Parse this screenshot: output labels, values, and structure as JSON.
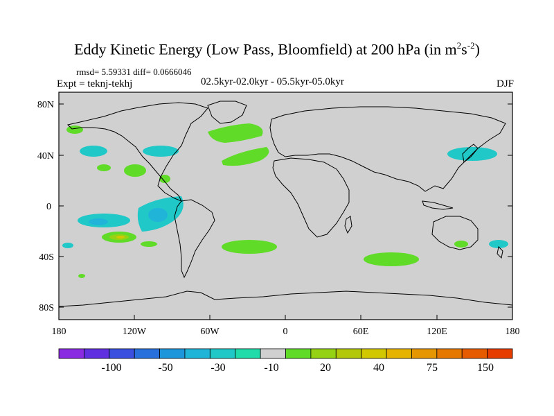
{
  "title": {
    "main": "Eddy Kinetic Energy (Low Pass, Bloomfield) at 200 hPa (in m",
    "sup1": "2",
    "mid": "s",
    "sup2": "-2",
    "end": ")"
  },
  "stats": "rmsd= 5.59331 diff= 0.0666046",
  "expt": "Expt = teknj-tekhj",
  "period": "02.5kyr-02.0kyr - 05.5kyr-05.0kyr",
  "season": "DJF",
  "axes": {
    "lat_ticks": [
      "80N",
      "40N",
      "0",
      "40S",
      "80S"
    ],
    "lon_ticks": [
      "180",
      "120W",
      "60W",
      "0",
      "60E",
      "120E",
      "180"
    ]
  },
  "colorbar": {
    "colors": [
      "#8a2be2",
      "#6030e0",
      "#3c50e0",
      "#2870dc",
      "#1e96dc",
      "#20b4d8",
      "#20c8c8",
      "#20dcaa",
      "#d0d0d0",
      "#60dc28",
      "#96d214",
      "#b4c80a",
      "#d2c800",
      "#e6b400",
      "#e69600",
      "#e67800",
      "#e65a00",
      "#e63c00"
    ],
    "labels": [
      "-100",
      "-50",
      "-30",
      "-10",
      "20",
      "40",
      "75",
      "150"
    ]
  },
  "colors": {
    "land_ocean": "#d0d0d0",
    "cyan": "#20dcaa",
    "teal": "#20c8c8",
    "blue": "#20b4d8",
    "green": "#60dc28",
    "lime": "#96d214",
    "yellow": "#d2c800"
  }
}
